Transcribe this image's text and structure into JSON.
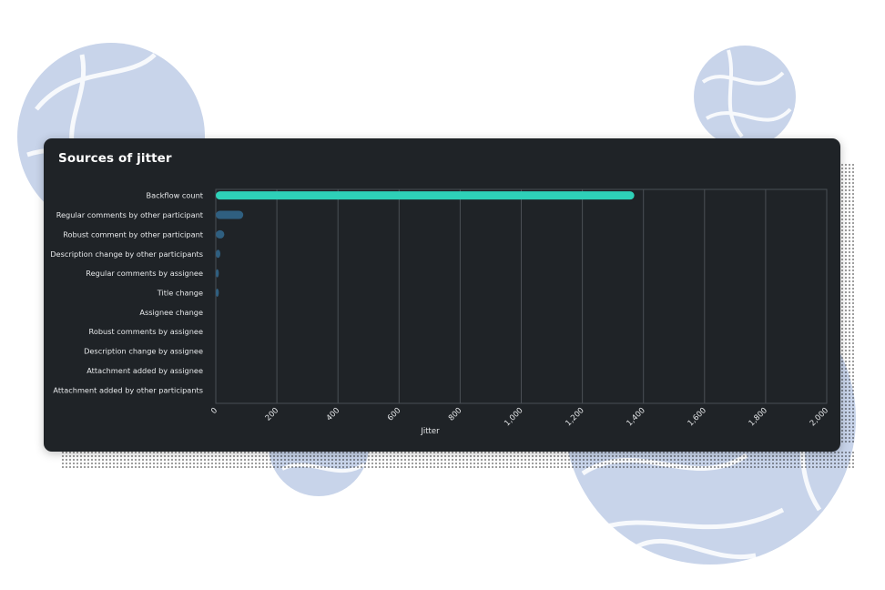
{
  "card": {
    "title": "Sources of jitter"
  },
  "colors": {
    "card_bg": "#1f2327",
    "highlight_bar": "#2ed1b8",
    "bar": "#2f5f80",
    "grid": "#4a4f55",
    "text": "#e6e8ea",
    "decor_blob": "#c8d4ea"
  },
  "chart_data": {
    "type": "bar",
    "orientation": "horizontal",
    "title": "Sources of jitter",
    "xlabel": "Jitter",
    "ylabel": "",
    "xlim": [
      0,
      2000
    ],
    "xticks": [
      "0",
      "200",
      "400",
      "600",
      "800",
      "1,000",
      "1,200",
      "1,400",
      "1,600",
      "1,800",
      "2,000"
    ],
    "grid": true,
    "categories": [
      "Backflow count",
      "Regular comments by other participant",
      "Robust comment by other participant",
      "Description change by other participants",
      "Regular comments by assignee",
      "Title change",
      "Assignee change",
      "Robust comments by assignee",
      "Description change by assignee",
      "Attachment added by assignee",
      "Attachment added by other participants"
    ],
    "values": [
      1370,
      90,
      28,
      15,
      10,
      10,
      0,
      0,
      0,
      0,
      0
    ],
    "highlight_index": 0
  }
}
